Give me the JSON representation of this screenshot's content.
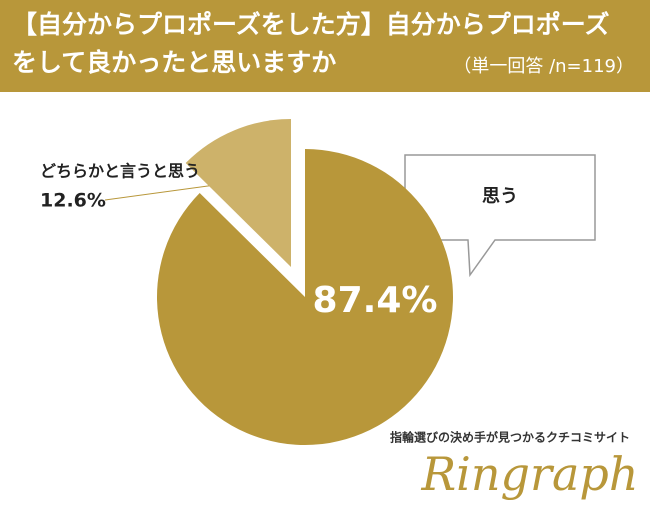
{
  "chart_data": {
    "type": "pie",
    "title": "【自分からプロポーズをした方】自分からプロポーズをして良かったと思いますか",
    "subtitle": "（単一回答 /n=119）",
    "categories": [
      "思う",
      "どちらかと言うと思う"
    ],
    "values": [
      87.4,
      12.6
    ],
    "value_labels": [
      "87.4%",
      "12.6%"
    ],
    "colors": [
      "#b8973a",
      "#cdb26a"
    ],
    "brand_tagline": "指輪選びの決め手が見つかるクチコミサイト",
    "brand_name": "Ringraph"
  }
}
